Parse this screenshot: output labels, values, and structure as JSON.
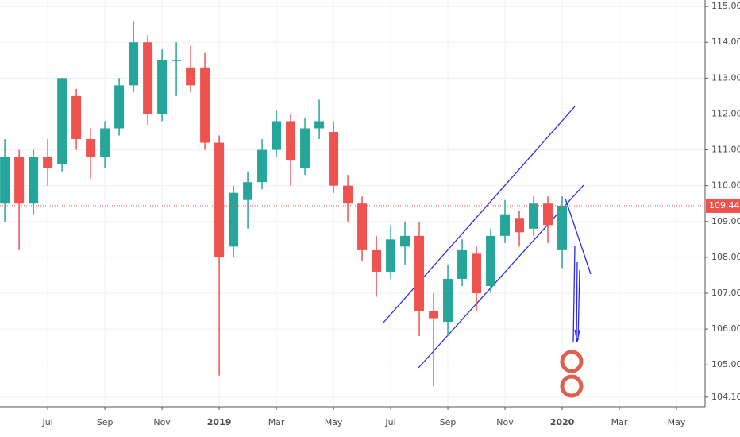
{
  "chart_data": {
    "type": "candlestick",
    "x": [
      -1.5,
      -1.0,
      -0.5,
      0,
      0.5,
      1.0,
      1.5,
      2.0,
      2.5,
      3.0,
      3.5,
      4.0,
      4.5,
      5.0,
      5.5,
      6.0,
      6.5,
      7.0,
      7.5,
      8.0,
      8.5,
      9.0,
      9.5,
      10.0,
      10.5,
      11.0,
      11.5,
      12.0,
      12.5,
      13.0,
      13.5,
      14.0,
      14.5,
      15.0,
      15.5,
      16.0,
      16.5,
      17.0,
      17.5,
      18.0
    ],
    "open": [
      109.5,
      110.8,
      109.5,
      110.8,
      110.6,
      112.5,
      111.3,
      110.8,
      111.6,
      112.8,
      114.0,
      112.0,
      113.5,
      113.3,
      113.3,
      111.2,
      108.3,
      109.6,
      110.1,
      111.0,
      111.8,
      110.5,
      111.6,
      111.5,
      110.0,
      109.5,
      108.2,
      107.6,
      108.3,
      108.6,
      106.5,
      106.2,
      107.4,
      108.1,
      107.2,
      108.6,
      109.1,
      108.8,
      109.5,
      108.2
    ],
    "high": [
      111.3,
      111.0,
      111.0,
      111.3,
      113.0,
      112.7,
      111.6,
      111.8,
      113.0,
      114.6,
      114.2,
      113.8,
      114.0,
      113.9,
      113.7,
      111.4,
      110.0,
      110.4,
      111.3,
      112.1,
      112.0,
      111.9,
      112.4,
      111.8,
      110.3,
      109.7,
      108.6,
      108.9,
      109.0,
      109.0,
      107.0,
      107.8,
      108.5,
      108.3,
      108.8,
      109.6,
      109.3,
      109.7,
      109.7,
      109.7
    ],
    "low": [
      109.0,
      108.2,
      109.2,
      110.0,
      110.4,
      111.0,
      110.2,
      110.5,
      111.4,
      112.6,
      111.7,
      111.8,
      112.5,
      112.6,
      111.0,
      104.7,
      108.0,
      108.8,
      109.9,
      110.8,
      110.0,
      110.3,
      111.3,
      109.8,
      109.0,
      107.9,
      106.9,
      107.4,
      107.8,
      105.8,
      104.4,
      105.8,
      107.2,
      106.5,
      107.0,
      108.4,
      108.3,
      108.6,
      108.4,
      107.7
    ],
    "close": [
      110.8,
      109.5,
      110.8,
      110.5,
      113.0,
      111.3,
      110.8,
      111.6,
      112.8,
      114.0,
      112.0,
      113.5,
      113.5,
      112.8,
      111.2,
      108.0,
      109.8,
      110.1,
      111.0,
      111.8,
      110.7,
      111.6,
      111.8,
      110.0,
      109.5,
      108.2,
      107.6,
      108.5,
      108.6,
      106.5,
      106.3,
      107.4,
      108.2,
      107.0,
      108.6,
      109.2,
      108.7,
      109.5,
      108.9,
      109.44
    ],
    "up_color": "#26a69a",
    "down_color": "#ef5350",
    "ylim": [
      103.83,
      115.18
    ],
    "xlim": [
      -1.67,
      23
    ],
    "yticks": [
      {
        "value": 104.1,
        "label": "104.100"
      },
      {
        "value": 105,
        "label": "105.000"
      },
      {
        "value": 106,
        "label": "106.000"
      },
      {
        "value": 107,
        "label": "107.000"
      },
      {
        "value": 108,
        "label": "108.000"
      },
      {
        "value": 109,
        "label": "109.000"
      },
      {
        "value": 110,
        "label": "110.000"
      },
      {
        "value": 111,
        "label": "111.000"
      },
      {
        "value": 112,
        "label": "112.000"
      },
      {
        "value": 113,
        "label": "113.000"
      },
      {
        "value": 114,
        "label": "114.000"
      },
      {
        "value": 115,
        "label": "115.000"
      }
    ],
    "xticks": [
      {
        "value": 0,
        "label": "Jul"
      },
      {
        "value": 2,
        "label": "Sep"
      },
      {
        "value": 4,
        "label": "Nov"
      },
      {
        "value": 6,
        "label": "2019"
      },
      {
        "value": 8,
        "label": "Mar"
      },
      {
        "value": 10,
        "label": "May"
      },
      {
        "value": 12,
        "label": "Jul"
      },
      {
        "value": 14,
        "label": "Sep"
      },
      {
        "value": 16,
        "label": "Nov"
      },
      {
        "value": 18,
        "label": "2020"
      },
      {
        "value": 20,
        "label": "Mar"
      },
      {
        "value": 22,
        "label": "May"
      }
    ],
    "last_price": {
      "value": 109.44,
      "label": "109.440"
    },
    "grid": true
  }
}
